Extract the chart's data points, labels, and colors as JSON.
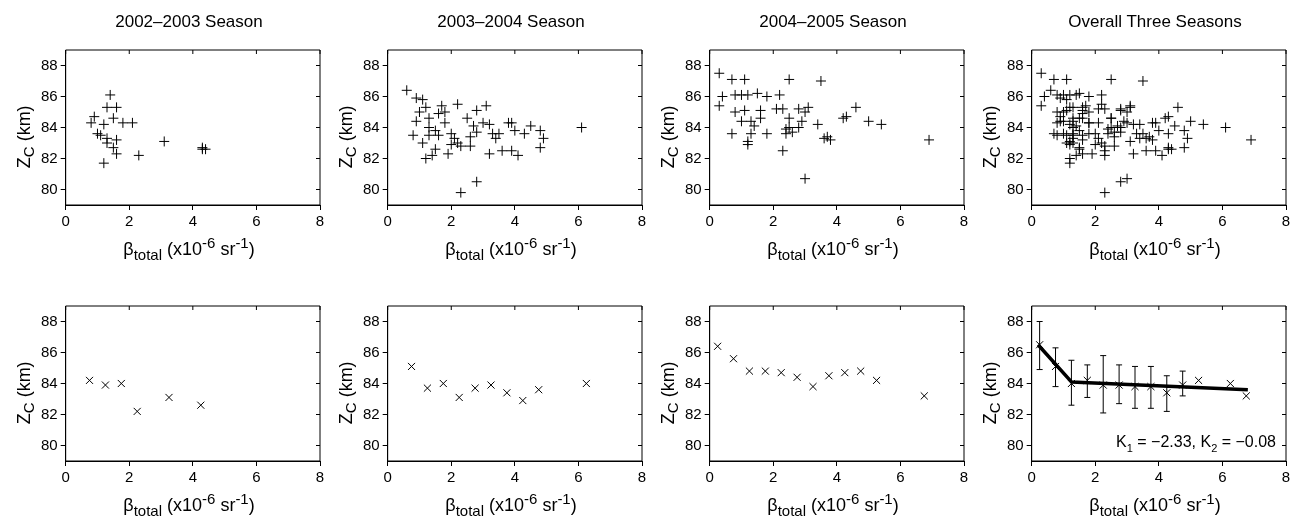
{
  "chart_data": [
    {
      "type": "scatter",
      "title": "2002–2003 Season",
      "xlabel": "β$_{total}$ (x10$^{-6}$ sr$^{-1}$)",
      "ylabel": "Z$_{C}$ (km)",
      "xlim": [
        0,
        8
      ],
      "ylim": [
        79,
        89
      ],
      "xticks": [
        0,
        2,
        4,
        6,
        8
      ],
      "yticks": [
        80,
        82,
        84,
        86,
        88
      ],
      "marker": "cross",
      "grid": false,
      "series": [
        {
          "color": "#000000",
          "x": [
            1.4,
            1.3,
            1.6,
            0.9,
            0.8,
            1.5,
            1.8,
            2.1,
            1.2,
            1.0,
            1.1,
            1.3,
            1.6,
            1.3,
            1.5,
            1.6,
            1.2,
            2.3,
            3.1,
            4.3,
            4.3,
            4.4
          ],
          "values": [
            86.1,
            85.3,
            85.3,
            84.7,
            84.3,
            84.6,
            84.3,
            84.3,
            84.2,
            83.6,
            83.5,
            83.3,
            83.2,
            83.0,
            82.7,
            82.3,
            81.7,
            82.2,
            83.1,
            82.6,
            82.7,
            82.6
          ]
        }
      ]
    },
    {
      "type": "scatter",
      "title": "2003–2004 Season",
      "xlabel": "β$_{total}$ (x10$^{-6}$ sr$^{-1}$)",
      "ylabel": "Z$_{C}$ (km)",
      "xlim": [
        0,
        8
      ],
      "ylim": [
        79,
        89
      ],
      "xticks": [
        0,
        2,
        4,
        6,
        8
      ],
      "yticks": [
        80,
        82,
        84,
        86,
        88
      ],
      "marker": "cross",
      "grid": false,
      "series": [
        {
          "color": "#000000",
          "x": [
            0.6,
            0.9,
            1.1,
            1.2,
            1.7,
            1.8,
            2.2,
            2.8,
            3.1,
            0.9,
            1.3,
            1.3,
            1.5,
            1.6,
            1.8,
            2.0,
            2.1,
            2.2,
            2.6,
            2.7,
            2.8,
            3.2,
            3.3,
            3.5,
            3.8,
            3.9,
            4.5,
            4.8,
            4.9,
            0.8,
            1.3,
            1.5,
            2.0,
            2.3,
            2.6,
            3.2,
            3.4,
            3.6,
            3.9,
            4.1,
            4.8,
            1.2,
            1.4,
            1.9,
            2.3,
            2.8,
            6.1,
            4.3,
            3.0,
            1.0,
            1.6,
            2.5,
            1.1,
            4.0
          ],
          "values": [
            86.4,
            85.9,
            85.8,
            85.3,
            85.4,
            85.0,
            85.5,
            85.1,
            85.4,
            84.4,
            84.6,
            84.0,
            83.8,
            83.5,
            84.3,
            83.6,
            83.3,
            83.0,
            83.4,
            84.1,
            83.7,
            84.2,
            83.6,
            83.6,
            84.3,
            84.3,
            84.1,
            83.8,
            83.3,
            83.5,
            83.5,
            82.6,
            82.9,
            82.8,
            82.8,
            82.3,
            83.3,
            82.5,
            82.5,
            82.2,
            82.7,
            82.0,
            82.2,
            82.3,
            79.8,
            80.5,
            84.0,
            83.6,
            84.3,
            85.0,
            84.9,
            84.6,
            83.0,
            83.8
          ]
        }
      ]
    },
    {
      "type": "scatter",
      "title": "2004–2005 Season",
      "xlabel": "β$_{total}$ (x10$^{-6}$ sr$^{-1}$)",
      "ylabel": "Z$_{C}$ (km)",
      "xlim": [
        0,
        8
      ],
      "ylim": [
        79,
        89
      ],
      "xticks": [
        0,
        2,
        4,
        6,
        8
      ],
      "yticks": [
        80,
        82,
        84,
        86,
        88
      ],
      "marker": "cross",
      "grid": false,
      "series": [
        {
          "color": "#000000",
          "x": [
            0.3,
            0.7,
            1.1,
            2.5,
            3.5,
            0.4,
            0.8,
            1.0,
            1.2,
            1.5,
            1.8,
            2.2,
            0.3,
            0.8,
            1.1,
            1.6,
            2.1,
            2.3,
            2.8,
            3.0,
            3.1,
            4.6,
            5.0,
            5.4,
            4.2,
            4.3,
            1.0,
            1.3,
            1.4,
            1.6,
            2.5,
            2.9,
            3.4,
            3.7,
            2.6,
            2.8,
            2.5,
            2.4,
            0.7,
            1.3,
            1.8,
            2.4,
            3.8,
            1.2,
            1.2,
            2.3,
            3.0,
            6.9,
            3.6
          ],
          "values": [
            87.5,
            87.1,
            87.1,
            87.1,
            87.0,
            86.0,
            86.1,
            86.1,
            86.1,
            86.2,
            86.0,
            86.1,
            85.4,
            85.0,
            85.1,
            85.1,
            85.2,
            85.2,
            85.2,
            85.0,
            85.3,
            85.3,
            84.4,
            84.2,
            84.6,
            84.7,
            84.4,
            84.4,
            84.1,
            84.6,
            84.6,
            84.4,
            84.2,
            83.4,
            83.7,
            84.0,
            84.0,
            83.9,
            83.6,
            83.6,
            83.6,
            83.6,
            83.2,
            83.1,
            82.9,
            82.5,
            80.7,
            83.2,
            83.3
          ]
        }
      ]
    },
    {
      "type": "scatter",
      "title": "Overall Three Seasons",
      "xlabel": "β$_{total}$ (x10$^{-6}$ sr$^{-1}$)",
      "ylabel": "Z$_{C}$ (km)",
      "xlim": [
        0,
        8
      ],
      "ylim": [
        79,
        89
      ],
      "xticks": [
        0,
        2,
        4,
        6,
        8
      ],
      "yticks": [
        80,
        82,
        84,
        86,
        88
      ],
      "marker": "cross",
      "grid": false,
      "series": [
        {
          "color": "#000000",
          "x": [
            1.4,
            1.3,
            1.6,
            0.9,
            0.8,
            1.5,
            1.8,
            2.1,
            1.2,
            1.0,
            1.1,
            1.3,
            1.6,
            1.3,
            1.5,
            1.6,
            1.2,
            2.3,
            3.1,
            4.3,
            4.3,
            4.4,
            0.6,
            0.9,
            1.1,
            1.2,
            1.7,
            1.8,
            2.2,
            2.8,
            3.1,
            0.9,
            1.3,
            1.3,
            1.5,
            1.6,
            1.8,
            2.0,
            2.1,
            2.2,
            2.6,
            2.7,
            2.8,
            3.2,
            3.3,
            3.5,
            3.8,
            3.9,
            4.5,
            4.8,
            4.9,
            0.8,
            1.3,
            1.5,
            2.0,
            2.3,
            2.6,
            3.2,
            3.4,
            3.6,
            3.9,
            4.1,
            4.8,
            1.2,
            1.4,
            1.9,
            2.3,
            2.8,
            6.1,
            4.3,
            3.0,
            1.0,
            1.6,
            2.5,
            1.1,
            4.0,
            0.3,
            0.7,
            1.1,
            2.5,
            3.5,
            0.4,
            0.8,
            1.0,
            1.2,
            1.5,
            1.8,
            2.2,
            0.3,
            0.8,
            1.1,
            1.6,
            2.1,
            2.3,
            2.8,
            3.0,
            3.1,
            4.6,
            5.0,
            5.4,
            4.2,
            4.3,
            1.0,
            1.3,
            1.4,
            1.6,
            2.5,
            2.9,
            3.4,
            3.7,
            2.6,
            2.8,
            2.5,
            2.4,
            0.7,
            1.3,
            1.8,
            2.4,
            3.8,
            1.2,
            1.2,
            2.3,
            3.0,
            6.9,
            3.6
          ],
          "values": [
            86.1,
            85.3,
            85.3,
            84.7,
            84.3,
            84.6,
            84.3,
            84.3,
            84.2,
            83.6,
            83.5,
            83.3,
            83.2,
            83.0,
            82.7,
            82.3,
            81.7,
            82.2,
            83.1,
            82.6,
            82.7,
            82.6,
            86.4,
            85.9,
            85.8,
            85.3,
            85.4,
            85.0,
            85.5,
            85.1,
            85.4,
            84.4,
            84.6,
            84.0,
            83.8,
            83.5,
            84.3,
            83.6,
            83.3,
            83.0,
            83.4,
            84.1,
            83.7,
            84.2,
            83.6,
            83.6,
            84.3,
            84.3,
            84.1,
            83.8,
            83.3,
            83.5,
            83.5,
            82.6,
            82.9,
            82.8,
            82.8,
            82.3,
            83.3,
            82.5,
            82.5,
            82.2,
            82.7,
            82.0,
            82.2,
            82.3,
            79.8,
            80.5,
            84.0,
            83.6,
            84.3,
            85.0,
            84.9,
            84.6,
            83.0,
            83.8,
            87.5,
            87.1,
            87.1,
            87.1,
            87.0,
            86.0,
            86.1,
            86.1,
            86.1,
            86.2,
            86.0,
            86.1,
            85.4,
            85.0,
            85.1,
            85.1,
            85.2,
            85.2,
            85.2,
            85.0,
            85.3,
            85.3,
            84.4,
            84.2,
            84.6,
            84.7,
            84.4,
            84.4,
            84.1,
            84.6,
            84.6,
            84.4,
            84.2,
            83.4,
            83.7,
            84.0,
            84.0,
            83.9,
            83.6,
            83.6,
            83.6,
            83.6,
            83.2,
            83.1,
            82.9,
            82.5,
            80.7,
            83.2,
            83.3
          ]
        }
      ]
    },
    {
      "type": "scatter",
      "xlabel": "β$_{total}$ (x10$^{-6}$ sr$^{-1}$)",
      "ylabel": "Z$_{C}$ (km)",
      "xlim": [
        0,
        8
      ],
      "ylim": [
        79,
        89
      ],
      "xticks": [
        0,
        2,
        4,
        6,
        8
      ],
      "yticks": [
        80,
        82,
        84,
        86,
        88
      ],
      "marker": "x",
      "grid": false,
      "series": [
        {
          "color": "#000000",
          "x": [
            0.75,
            1.25,
            1.75,
            2.25,
            3.25,
            4.25
          ],
          "values": [
            84.2,
            83.9,
            84.0,
            82.2,
            83.1,
            82.6
          ]
        }
      ]
    },
    {
      "type": "scatter",
      "xlabel": "β$_{total}$ (x10$^{-6}$ sr$^{-1}$)",
      "ylabel": "Z$_{C}$ (km)",
      "xlim": [
        0,
        8
      ],
      "ylim": [
        79,
        89
      ],
      "xticks": [
        0,
        2,
        4,
        6,
        8
      ],
      "yticks": [
        80,
        82,
        84,
        86,
        88
      ],
      "marker": "x",
      "grid": false,
      "series": [
        {
          "color": "#000000",
          "x": [
            0.75,
            1.25,
            1.75,
            2.25,
            2.75,
            3.25,
            3.75,
            4.25,
            4.75,
            6.25
          ],
          "values": [
            85.1,
            83.7,
            84.0,
            83.1,
            83.7,
            83.9,
            83.4,
            82.9,
            83.6,
            84.0
          ]
        }
      ]
    },
    {
      "type": "scatter",
      "xlabel": "β$_{total}$ (x10$^{-6}$ sr$^{-1}$)",
      "ylabel": "Z$_{C}$ (km)",
      "xlim": [
        0,
        8
      ],
      "ylim": [
        79,
        89
      ],
      "xticks": [
        0,
        2,
        4,
        6,
        8
      ],
      "yticks": [
        80,
        82,
        84,
        86,
        88
      ],
      "marker": "x",
      "grid": false,
      "series": [
        {
          "color": "#000000",
          "x": [
            0.25,
            0.75,
            1.25,
            1.75,
            2.25,
            2.75,
            3.25,
            3.75,
            4.25,
            4.75,
            5.25,
            6.75
          ],
          "values": [
            86.4,
            85.6,
            84.8,
            84.8,
            84.7,
            84.4,
            83.8,
            84.5,
            84.7,
            84.8,
            84.2,
            83.2
          ]
        }
      ]
    },
    {
      "type": "scatter",
      "xlabel": "β$_{total}$ (x10$^{-6}$ sr$^{-1}$)",
      "ylabel": "Z$_{C}$ (km)",
      "xlim": [
        0,
        8
      ],
      "ylim": [
        79,
        89
      ],
      "xticks": [
        0,
        2,
        4,
        6,
        8
      ],
      "yticks": [
        80,
        82,
        84,
        86,
        88
      ],
      "grid": false,
      "annotations": [
        "K$_{1}$ = −2.33, K$_{2}$ = −0.08"
      ],
      "series": [
        {
          "color": "#000000",
          "marker": "x",
          "x": [
            0.25,
            0.75,
            1.25,
            1.75,
            2.25,
            2.75,
            3.25,
            3.75,
            4.25,
            4.75,
            5.25,
            6.25,
            6.75
          ],
          "values": [
            86.5,
            85.1,
            84.0,
            84.2,
            83.9,
            83.9,
            83.8,
            83.8,
            83.4,
            83.9,
            84.2,
            84.0,
            83.2
          ],
          "errors": [
            [
              84.9,
              88.0
            ],
            [
              83.8,
              86.3
            ],
            [
              82.6,
              85.5
            ],
            [
              83.1,
              85.2
            ],
            [
              82.1,
              85.8
            ],
            [
              82.7,
              85.2
            ],
            [
              82.4,
              85.1
            ],
            [
              82.4,
              85.1
            ],
            [
              82.2,
              84.5
            ],
            [
              83.2,
              84.8
            ],
            null,
            null,
            null
          ]
        },
        {
          "type": "line",
          "color": "#000000",
          "marker": "none",
          "x": [
            0.2,
            1.25,
            6.8
          ],
          "values": [
            86.5,
            84.1,
            83.6
          ]
        }
      ]
    }
  ]
}
